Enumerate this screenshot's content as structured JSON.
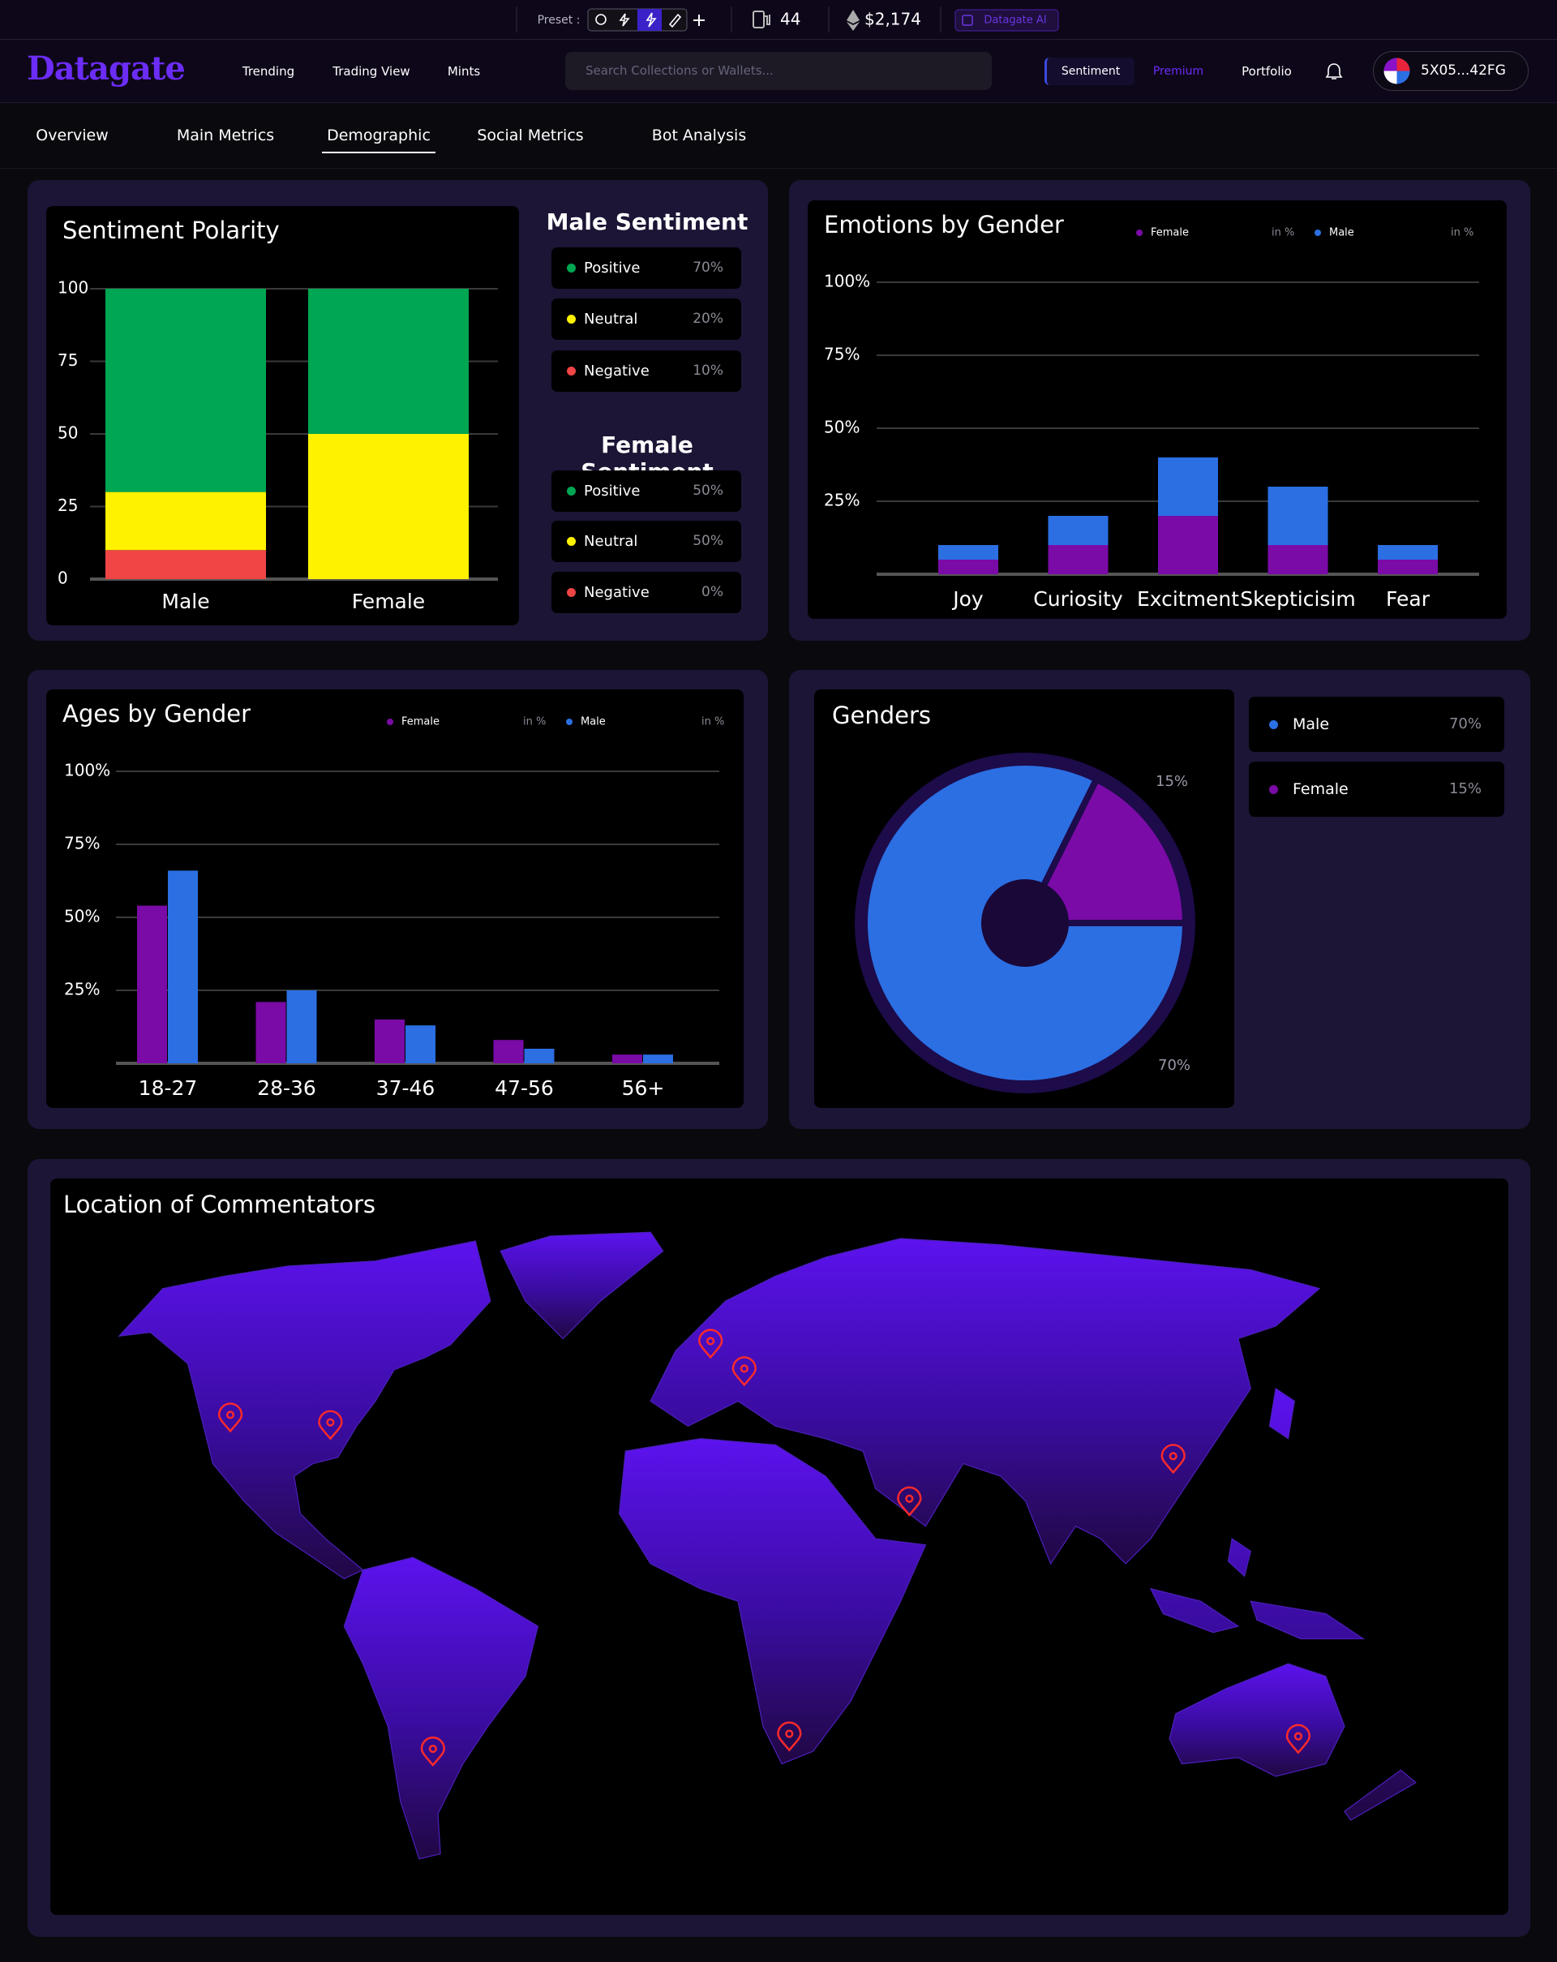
{
  "topbar": {
    "preset_label": "Preset :",
    "gas": "44",
    "eth_price": "$2,174",
    "ai_button": "Datagate AI"
  },
  "nav": {
    "logo": "Datagate",
    "links": [
      "Trending",
      "Trading View",
      "Mints"
    ],
    "search_placeholder": "Search Collections or Wallets...",
    "modes": [
      "Sentiment",
      "Premium"
    ],
    "portfolio": "Portfolio",
    "wallet": "5X05...42FG"
  },
  "tabs": {
    "items": [
      "Overview",
      "Main Metrics",
      "Demographic",
      "Social Metrics",
      "Bot Analysis"
    ],
    "active": 2
  },
  "chart_data": [
    {
      "type": "stacked_bar",
      "title": "Sentiment Polarity",
      "categories": [
        "Male",
        "Female"
      ],
      "series": [
        {
          "name": "Negative",
          "color": "#f04545",
          "values": [
            10,
            0
          ],
          "value_labels": [
            "10%",
            "0%"
          ]
        },
        {
          "name": "Neutral",
          "color": "#fff200",
          "values": [
            20,
            50
          ],
          "value_labels": [
            "20%",
            "50%"
          ]
        },
        {
          "name": "Positive",
          "color": "#00a651",
          "values": [
            70,
            50
          ],
          "value_labels": [
            "70%",
            "50%"
          ]
        }
      ],
      "ylim": [
        0,
        100
      ],
      "yticks": [
        0,
        25,
        50,
        75,
        100
      ],
      "grid": true,
      "breakdown_titles": [
        "Male Sentiment",
        "Female Sentiment"
      ]
    },
    {
      "type": "stacked_bar",
      "title": "Emotions by Gender",
      "categories": [
        "Joy",
        "Curiosity",
        "Excitment",
        "Skepticisim",
        "Fear"
      ],
      "series": [
        {
          "name": "Female",
          "color": "#7a0ba6",
          "values": [
            5,
            10,
            20,
            10,
            5
          ]
        },
        {
          "name": "Male",
          "color": "#2b6fe3",
          "values": [
            5,
            10,
            20,
            20,
            5
          ]
        }
      ],
      "legend_unit": "in %",
      "ylim": [
        0,
        100
      ],
      "yticks": [
        {
          "value": 25,
          "label": "25%"
        },
        {
          "value": 50,
          "label": "50%"
        },
        {
          "value": 75,
          "label": "75%"
        },
        {
          "value": 100,
          "label": "100%"
        }
      ],
      "grid": true
    },
    {
      "type": "grouped_bar",
      "title": "Ages by Gender",
      "categories": [
        "18-27",
        "28-36",
        "37-46",
        "47-56",
        "56+"
      ],
      "series": [
        {
          "name": "Female",
          "color": "#7a0ba6",
          "values": [
            54,
            21,
            15,
            8,
            3
          ]
        },
        {
          "name": "Male",
          "color": "#2b6fe3",
          "values": [
            66,
            25,
            13,
            5,
            3
          ]
        }
      ],
      "legend_unit": "in %",
      "ylim": [
        0,
        100
      ],
      "yticks": [
        {
          "value": 25,
          "label": "25%"
        },
        {
          "value": 50,
          "label": "50%"
        },
        {
          "value": 75,
          "label": "75%"
        },
        {
          "value": 100,
          "label": "100%"
        }
      ],
      "grid": true
    },
    {
      "type": "donut",
      "title": "Genders",
      "categories": [
        "Male",
        "Female"
      ],
      "values": [
        70,
        15
      ],
      "value_labels": [
        "70%",
        "15%"
      ],
      "colors": [
        "#2b6fe3",
        "#7a0ba6"
      ]
    }
  ],
  "map": {
    "title": "Location of Commentators"
  }
}
